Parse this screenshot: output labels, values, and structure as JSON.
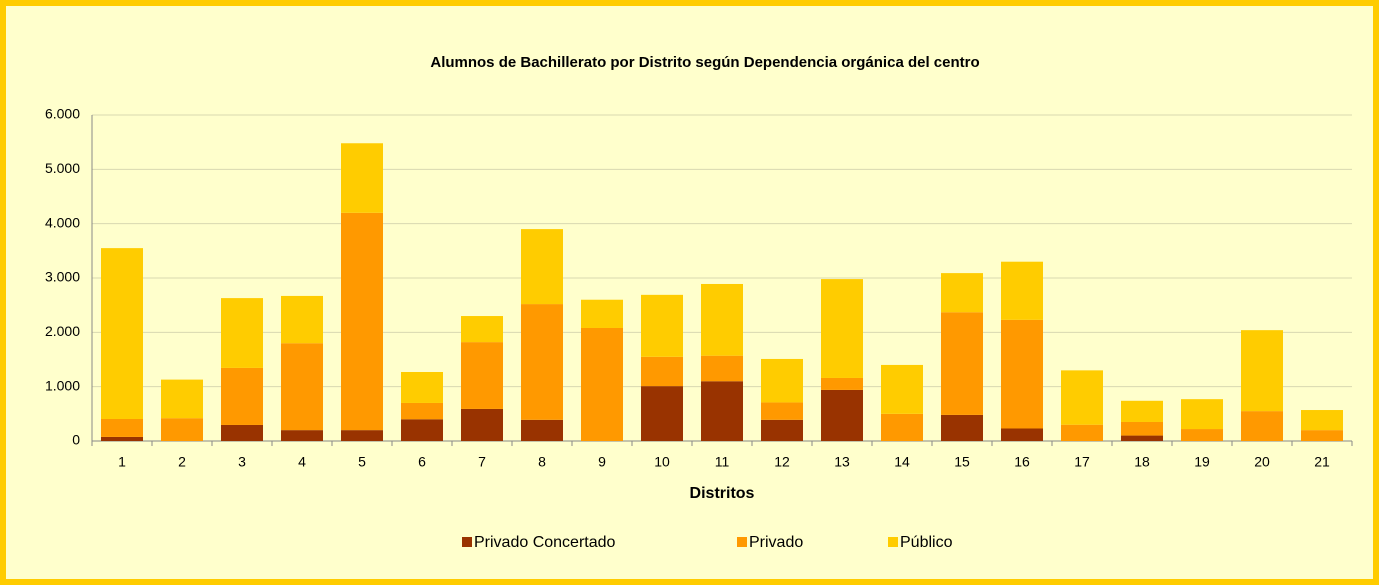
{
  "chart_data": {
    "type": "stacked-bar",
    "title": "Alumnos de Bachillerato por Distrito según Dependencia orgánica del centro",
    "x_label": "Distritos",
    "categories": [
      "1",
      "2",
      "3",
      "4",
      "5",
      "6",
      "7",
      "8",
      "9",
      "10",
      "11",
      "12",
      "13",
      "14",
      "15",
      "16",
      "17",
      "18",
      "19",
      "20",
      "21"
    ],
    "series": [
      {
        "name": "Privado Concertado",
        "color": "#993300",
        "values": [
          75,
          0,
          295,
          200,
          200,
          400,
          590,
          390,
          0,
          1010,
          1100,
          390,
          940,
          0,
          480,
          230,
          0,
          100,
          0,
          0,
          0
        ]
      },
      {
        "name": "Privado",
        "color": "#ff9900",
        "values": [
          330,
          420,
          1050,
          1600,
          4000,
          300,
          1230,
          2130,
          2080,
          540,
          470,
          320,
          220,
          500,
          1890,
          2000,
          300,
          250,
          220,
          550,
          200
        ]
      },
      {
        "name": "Público",
        "color": "#ffcc00",
        "values": [
          3145,
          710,
          1285,
          870,
          1280,
          570,
          480,
          1380,
          520,
          1140,
          1320,
          800,
          1820,
          900,
          720,
          1070,
          1000,
          390,
          550,
          1490,
          370
        ]
      }
    ],
    "ylim": [
      0,
      6000
    ],
    "yticks": [
      0,
      {
        "value": 1000,
        "label": "1.000"
      },
      {
        "value": 2000,
        "label": "2.000"
      },
      {
        "value": 3000,
        "label": "3.000"
      },
      {
        "value": 4000,
        "label": "4.000"
      },
      {
        "value": 5000,
        "label": "5.000"
      },
      {
        "value": 6000,
        "label": "6.000"
      }
    ],
    "grid": true,
    "legend": "bottom"
  }
}
